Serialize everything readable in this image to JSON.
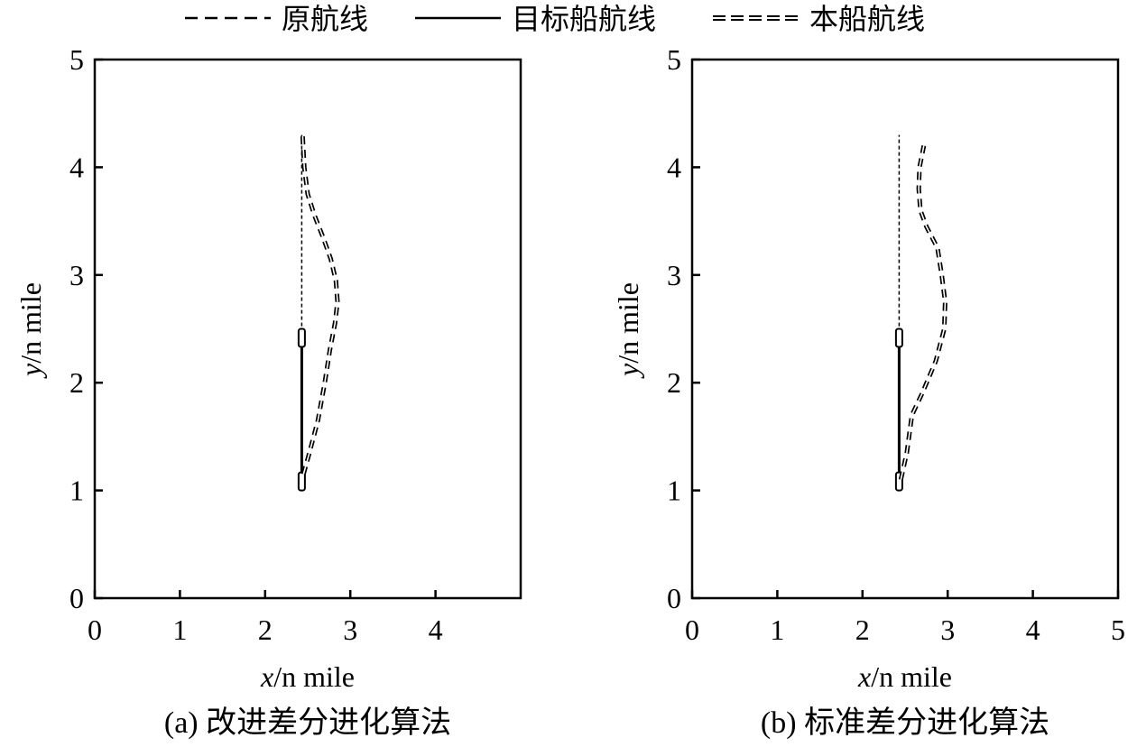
{
  "legend": [
    {
      "label": "原航线",
      "style": "dashed"
    },
    {
      "label": "目标船航线",
      "style": "solid"
    },
    {
      "label": "本船航线",
      "style": "ship-dashed"
    }
  ],
  "chart_data": [
    {
      "type": "line",
      "caption": "(a) 改进差分进化算法",
      "xlabel_var": "x",
      "xlabel_unit": "/n mile",
      "ylabel_var": "y",
      "ylabel_unit": "/n mile",
      "xlim": [
        0,
        5
      ],
      "ylim": [
        0,
        5
      ],
      "xticks": [
        "0",
        "1",
        "2",
        "3",
        "4"
      ],
      "yticks": [
        "0",
        "1",
        "2",
        "3",
        "4",
        "5"
      ],
      "series": [
        {
          "name": "原航线",
          "x": [
            2.43,
            2.43
          ],
          "y": [
            1.0,
            4.3
          ]
        },
        {
          "name": "目标船航线",
          "x": [
            2.43,
            2.43
          ],
          "y": [
            1.0,
            2.5
          ]
        },
        {
          "name": "本船航线",
          "x": [
            2.45,
            2.52,
            2.62,
            2.7,
            2.76,
            2.82,
            2.85,
            2.83,
            2.77,
            2.68,
            2.58,
            2.5,
            2.46,
            2.44
          ],
          "y": [
            1.15,
            1.35,
            1.65,
            2.0,
            2.3,
            2.55,
            2.75,
            2.95,
            3.15,
            3.35,
            3.55,
            3.75,
            4.0,
            4.3
          ]
        }
      ]
    },
    {
      "type": "line",
      "caption": "(b) 标准差分进化算法",
      "xlabel_var": "x",
      "xlabel_unit": "/n mile",
      "ylabel_var": "y",
      "ylabel_unit": "/n mile",
      "xlim": [
        0,
        5
      ],
      "ylim": [
        0,
        5
      ],
      "xticks": [
        "0",
        "1",
        "2",
        "3",
        "4",
        "5"
      ],
      "yticks": [
        "0",
        "1",
        "2",
        "3",
        "4",
        "5"
      ],
      "series": [
        {
          "name": "原航线",
          "x": [
            2.43,
            2.43
          ],
          "y": [
            1.0,
            4.3
          ]
        },
        {
          "name": "目标船航线",
          "x": [
            2.43,
            2.43
          ],
          "y": [
            1.0,
            2.5
          ]
        },
        {
          "name": "本船航线",
          "x": [
            2.45,
            2.52,
            2.58,
            2.7,
            2.86,
            2.96,
            2.97,
            2.93,
            2.88,
            2.75,
            2.68,
            2.66,
            2.67,
            2.72
          ],
          "y": [
            1.1,
            1.35,
            1.7,
            1.9,
            2.2,
            2.5,
            2.75,
            3.0,
            3.25,
            3.45,
            3.6,
            3.8,
            4.0,
            4.2
          ]
        }
      ]
    }
  ]
}
